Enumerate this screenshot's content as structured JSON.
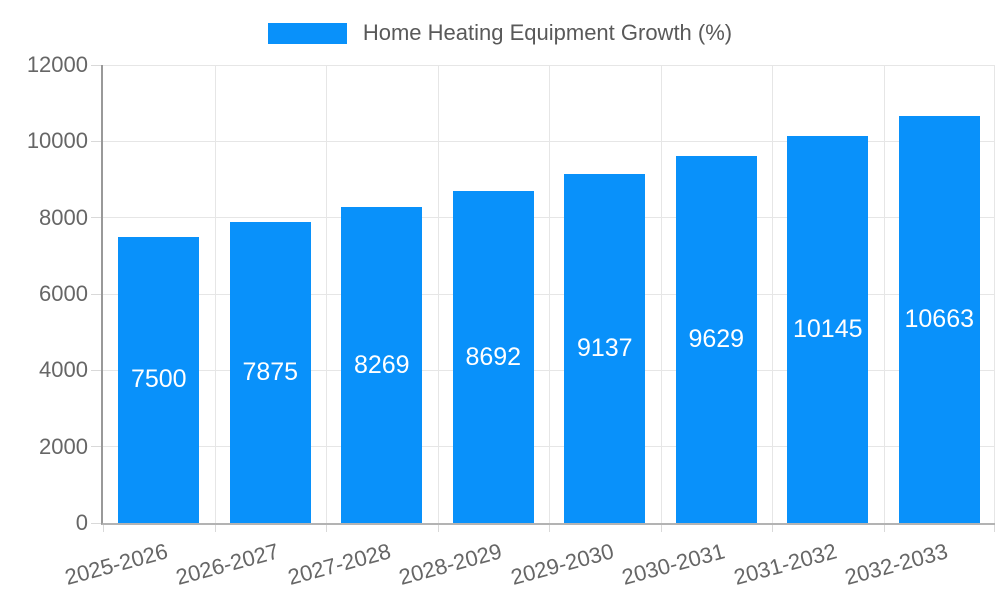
{
  "chart_data": {
    "type": "bar",
    "title": "Home Heating Equipment Growth (%)",
    "legend_label": "Home Heating Equipment Growth (%)",
    "legend_position": "top-center",
    "categories": [
      "2025-2026",
      "2026-2027",
      "2027-2028",
      "2028-2029",
      "2029-2030",
      "2030-2031",
      "2031-2032",
      "2032-2033"
    ],
    "values": [
      7500,
      7875,
      8269,
      8692,
      9137,
      9629,
      10145,
      10663
    ],
    "value_labels": [
      "7500",
      "7875",
      "8269",
      "8692",
      "9137",
      "9629",
      "10145",
      "10663"
    ],
    "xlabel": "",
    "ylabel": "",
    "ylim": [
      0,
      12000
    ],
    "yticks": [
      0,
      2000,
      4000,
      6000,
      8000,
      10000,
      12000
    ],
    "ytick_labels": [
      "0",
      "2000",
      "4000",
      "6000",
      "8000",
      "10000",
      "12000"
    ],
    "grid": true,
    "xtick_rotation_deg": -15,
    "colors": {
      "bar_fill": "#0991fa",
      "bar_value_text": "#ffffff",
      "axis_text": "#666666",
      "legend_text": "#595959",
      "gridline": "#e6e6e6",
      "y_axis_line": "#999999",
      "x_axis_line": "#b3b3b3",
      "tick_mark": "#d9d9d9",
      "background": "#ffffff"
    }
  }
}
